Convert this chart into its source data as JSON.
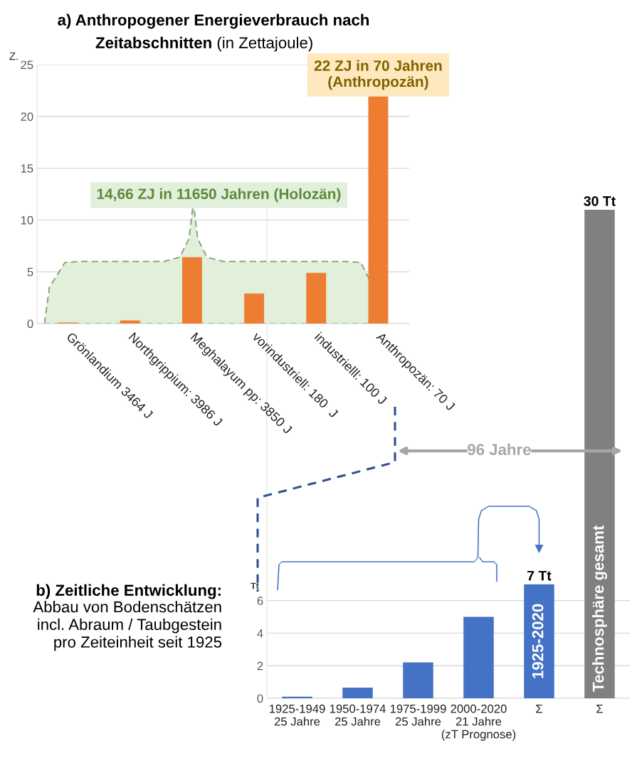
{
  "chart_data": [
    {
      "type": "bar",
      "title": "a) Anthropogener Energieverbrauch nach Zeitabschnitten",
      "subtitle": "(in Zettajoule)",
      "ylabel": "Z.",
      "categories": [
        "Grönlandium 3464 J",
        "Northgrippium: 3986 J",
        "Meghalayum pp: 3850 J",
        "vorindustriell: 180  J",
        "industrielll: 100 J",
        "Anthropozän: 70 J"
      ],
      "values": [
        0.1,
        0.3,
        6.4,
        2.9,
        4.9,
        22
      ],
      "color": "#ed7d31",
      "ylim": [
        0,
        25
      ],
      "yticks": [
        0,
        5,
        10,
        15,
        20,
        25
      ],
      "grid": "y",
      "annotations": [
        "14,66 ZJ in 11650 Jahren (Holozän)",
        {
          "text": "22 ZJ in 70 Jahren\n(Anthropozän)",
          "x": "Anthropozän: 70 J",
          "y": 22
        }
      ]
    },
    {
      "type": "bar",
      "title": "b) Zeitliche Entwicklung:",
      "subtitle": "Abbau von Bodenschätzen\nincl. Abraum / Taubgestein\npro Zeiteinheit seit 1925",
      "ylabel": "Tt",
      "categories": [
        "1925-1949\n25 Jahre",
        "1950-1974\n25 Jahre",
        "1975-1999\n25 Jahre",
        "2000-2020\n21 Jahre\n(zT Prognose)",
        "Σ",
        "Σ"
      ],
      "values": [
        0.1,
        0.65,
        2.2,
        5.0,
        7,
        30
      ],
      "colors": [
        "#4472c4",
        "#4472c4",
        "#4472c4",
        "#4472c4",
        "#4472c4",
        "#808080"
      ],
      "value_labels": [
        null,
        null,
        null,
        null,
        "7 Tt",
        "30 Tt"
      ],
      "ylim": [
        0,
        31
      ],
      "yticks": [
        0,
        2,
        4,
        6
      ],
      "grid": "y",
      "annotations": [
        "1925-2020",
        "Technosphäre gesamt",
        "96 Jahre"
      ]
    }
  ]
}
